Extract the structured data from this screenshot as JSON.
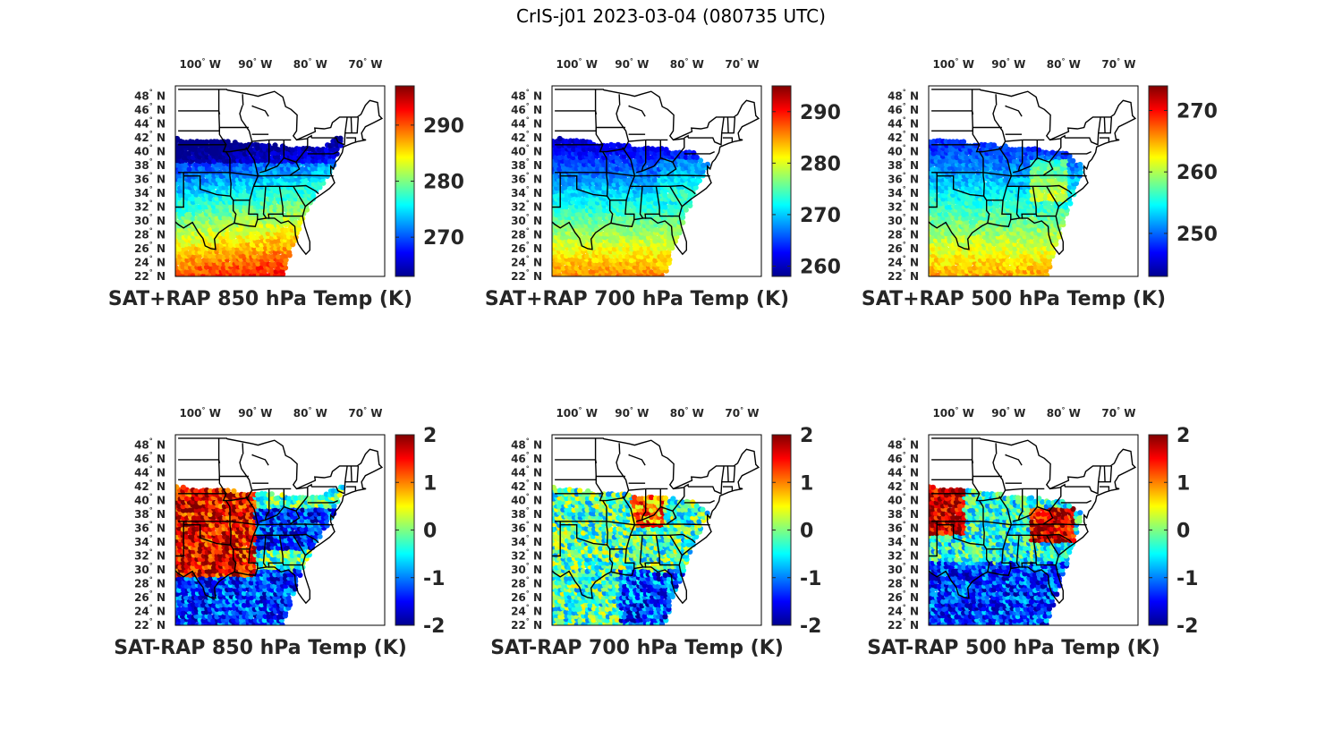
{
  "figure": {
    "title": "CrIS-j01 2023-03-04 (080735 UTC)"
  },
  "lon_ticks": [
    "100",
    "90",
    "80",
    "70"
  ],
  "lon_tick_values": [
    -100,
    -90,
    -80,
    -70
  ],
  "lat_ticks": [
    "48",
    "46",
    "44",
    "42",
    "40",
    "38",
    "36",
    "34",
    "32",
    "30",
    "28",
    "26",
    "24",
    "22"
  ],
  "lat_tick_values": [
    48,
    46,
    44,
    42,
    40,
    38,
    36,
    34,
    32,
    30,
    28,
    26,
    24,
    22
  ],
  "hemisphere": {
    "west": "W",
    "north": "N"
  },
  "degree_symbol": "°",
  "colormap": [
    "#00008f",
    "#0000ff",
    "#0080ff",
    "#00ffff",
    "#80ff80",
    "#ffff00",
    "#ff8000",
    "#ff0000",
    "#800000"
  ],
  "panels": [
    {
      "id": "sat-rap-850",
      "title": "SAT+RAP 850 hPa Temp (K)",
      "cbar_range": [
        263,
        297
      ],
      "cbar_ticks": [
        270,
        280,
        290
      ]
    },
    {
      "id": "sat-rap-700",
      "title": "SAT+RAP 700 hPa Temp (K)",
      "cbar_range": [
        258,
        295
      ],
      "cbar_ticks": [
        260,
        270,
        280,
        290
      ]
    },
    {
      "id": "sat-rap-500",
      "title": "SAT+RAP 500 hPa Temp (K)",
      "cbar_range": [
        243,
        274
      ],
      "cbar_ticks": [
        250,
        260,
        270
      ]
    },
    {
      "id": "sat-minus-rap-850",
      "title": "SAT-RAP 850 hPa Temp (K)",
      "cbar_range": [
        -2,
        2
      ],
      "cbar_ticks": [
        -2,
        -1,
        0,
        1,
        2
      ]
    },
    {
      "id": "sat-minus-rap-700",
      "title": "SAT-RAP 700 hPa Temp (K)",
      "cbar_range": [
        -2,
        2
      ],
      "cbar_ticks": [
        -2,
        -1,
        0,
        1,
        2
      ]
    },
    {
      "id": "sat-minus-rap-500",
      "title": "SAT-RAP 500 hPa Temp (K)",
      "cbar_range": [
        -2,
        2
      ],
      "cbar_ticks": [
        -2,
        -1,
        0,
        1,
        2
      ]
    }
  ]
}
